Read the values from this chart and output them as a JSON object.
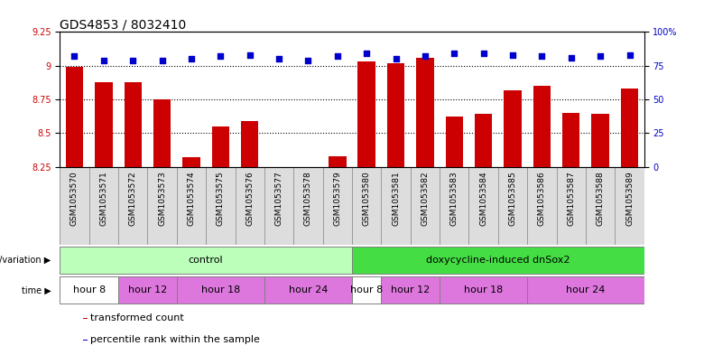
{
  "title": "GDS4853 / 8032410",
  "samples": [
    "GSM1053570",
    "GSM1053571",
    "GSM1053572",
    "GSM1053573",
    "GSM1053574",
    "GSM1053575",
    "GSM1053576",
    "GSM1053577",
    "GSM1053578",
    "GSM1053579",
    "GSM1053580",
    "GSM1053581",
    "GSM1053582",
    "GSM1053583",
    "GSM1053584",
    "GSM1053585",
    "GSM1053586",
    "GSM1053587",
    "GSM1053588",
    "GSM1053589"
  ],
  "transformed_count": [
    8.99,
    8.88,
    8.88,
    8.75,
    8.32,
    8.55,
    8.59,
    8.25,
    8.25,
    8.33,
    9.03,
    9.02,
    9.06,
    8.62,
    8.64,
    8.82,
    8.85,
    8.65,
    8.64,
    8.83
  ],
  "percentile_rank": [
    82,
    79,
    79,
    79,
    80,
    82,
    83,
    80,
    79,
    82,
    84,
    80,
    82,
    84,
    84,
    83,
    82,
    81,
    82,
    83
  ],
  "ylim_left": [
    8.25,
    9.25
  ],
  "ylim_right": [
    0,
    100
  ],
  "yticks_left": [
    8.25,
    8.5,
    8.75,
    9.0,
    9.25
  ],
  "yticks_right": [
    0,
    25,
    50,
    75,
    100
  ],
  "bar_color": "#cc0000",
  "dot_color": "#0000cc",
  "bg_color": "#ffffff",
  "title_fontsize": 10,
  "tick_fontsize": 7,
  "sample_fontsize": 6.5,
  "genotype_groups": [
    {
      "label": "control",
      "start": 0,
      "end": 10,
      "color": "#bbffbb"
    },
    {
      "label": "doxycycline-induced dnSox2",
      "start": 10,
      "end": 20,
      "color": "#44dd44"
    }
  ],
  "time_groups": [
    {
      "label": "hour 8",
      "start": 0,
      "end": 2,
      "color": "#ffffff"
    },
    {
      "label": "hour 12",
      "start": 2,
      "end": 4,
      "color": "#dd77dd"
    },
    {
      "label": "hour 18",
      "start": 4,
      "end": 7,
      "color": "#dd77dd"
    },
    {
      "label": "hour 24",
      "start": 7,
      "end": 10,
      "color": "#dd77dd"
    },
    {
      "label": "hour 8",
      "start": 10,
      "end": 11,
      "color": "#ffffff"
    },
    {
      "label": "hour 12",
      "start": 11,
      "end": 13,
      "color": "#dd77dd"
    },
    {
      "label": "hour 18",
      "start": 13,
      "end": 16,
      "color": "#dd77dd"
    },
    {
      "label": "hour 24",
      "start": 16,
      "end": 20,
      "color": "#dd77dd"
    }
  ],
  "legend_items": [
    {
      "label": "transformed count",
      "color": "#cc0000"
    },
    {
      "label": "percentile rank within the sample",
      "color": "#0000cc"
    }
  ]
}
